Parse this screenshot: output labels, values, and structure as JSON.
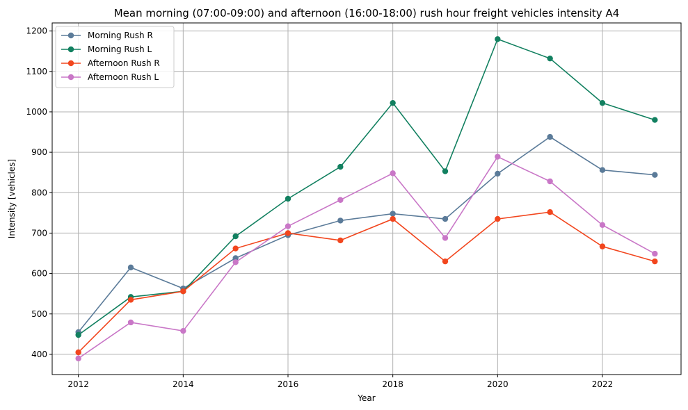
{
  "chart_data": {
    "type": "line",
    "title": "Mean morning (07:00-09:00) and afternoon (16:00-18:00) rush hour freight vehicles intensity A4",
    "xlabel": "Year",
    "ylabel": "Intensity [vehicles]",
    "x": [
      2012,
      2013,
      2014,
      2015,
      2016,
      2017,
      2018,
      2019,
      2020,
      2021,
      2022,
      2023
    ],
    "xlim": [
      2011.5,
      2023.5
    ],
    "ylim": [
      350,
      1220
    ],
    "xticks": [
      2012,
      2014,
      2016,
      2018,
      2020,
      2022
    ],
    "yticks": [
      400,
      500,
      600,
      700,
      800,
      900,
      1000,
      1100,
      1200
    ],
    "grid": true,
    "legend_position": "top-left",
    "series": [
      {
        "name": "Morning Rush R",
        "color": "#5b7b99",
        "values": [
          455,
          615,
          563,
          638,
          695,
          731,
          748,
          735,
          847,
          938,
          856,
          844
        ]
      },
      {
        "name": "Morning Rush L",
        "color": "#128060",
        "values": [
          448,
          542,
          556,
          692,
          785,
          864,
          1022,
          853,
          1180,
          1132,
          1022,
          980
        ]
      },
      {
        "name": "Afternoon Rush R",
        "color": "#f2461e",
        "values": [
          405,
          535,
          556,
          662,
          700,
          682,
          735,
          630,
          735,
          752,
          667,
          630
        ]
      },
      {
        "name": "Afternoon Rush L",
        "color": "#c977c7",
        "values": [
          390,
          479,
          458,
          628,
          717,
          782,
          848,
          688,
          889,
          828,
          720,
          649
        ]
      }
    ]
  }
}
